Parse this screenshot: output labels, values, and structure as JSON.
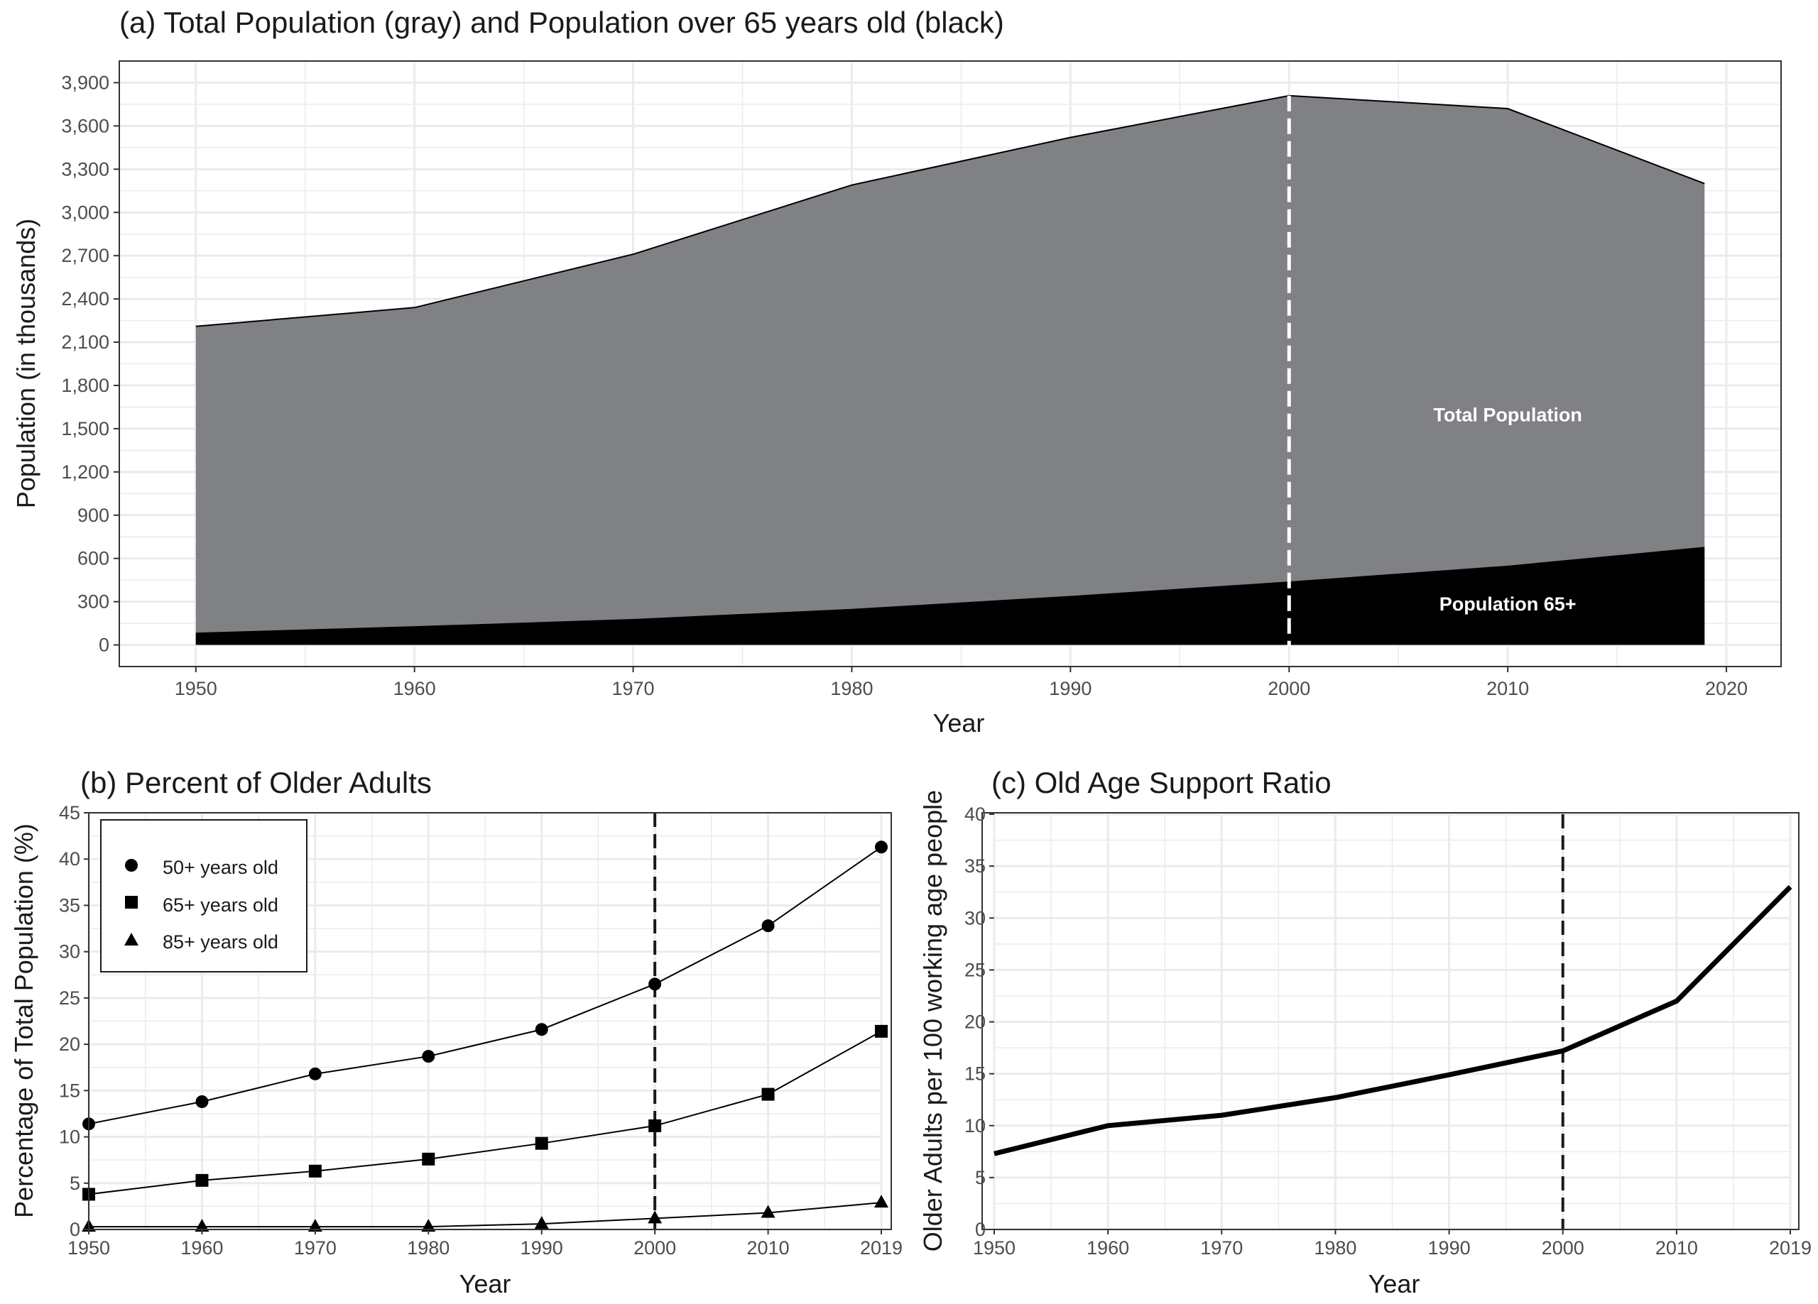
{
  "colors": {
    "total_area": "#808184",
    "older_area": "#000000",
    "grid": "#ebebeb",
    "panel_border": "#333333"
  },
  "chart_data": [
    {
      "id": "a",
      "type": "area",
      "title": "(a) Total Population (gray) and Population over 65 years old (black)",
      "xlabel": "Year",
      "ylabel": "Population (in thousands)",
      "xlim": [
        1946.5,
        2022.5
      ],
      "ylim": [
        -150,
        4050
      ],
      "xticks": [
        1950,
        1960,
        1970,
        1980,
        1990,
        2000,
        2010,
        2020
      ],
      "yticks": [
        0,
        300,
        600,
        900,
        1200,
        1500,
        1800,
        2100,
        2400,
        2700,
        3000,
        3300,
        3600,
        3900
      ],
      "ytick_labels": [
        "0",
        "300",
        "600",
        "900",
        "1,200",
        "1,500",
        "1,800",
        "2,100",
        "2,400",
        "2,700",
        "3,000",
        "3,300",
        "3,600",
        "3,900"
      ],
      "vline": 2000,
      "series": [
        {
          "name": "Total Population",
          "x": [
            1950,
            1960,
            1970,
            1980,
            1990,
            2000,
            2010,
            2019
          ],
          "values": [
            2210,
            2340,
            2710,
            3190,
            3520,
            3810,
            3720,
            3200
          ],
          "label_x": 2010,
          "label_y": 1550
        },
        {
          "name": "Population 65+",
          "x": [
            1950,
            1960,
            1970,
            1980,
            1990,
            2000,
            2010,
            2019
          ],
          "values": [
            85,
            130,
            180,
            250,
            340,
            440,
            550,
            680
          ],
          "label_x": 2010,
          "label_y": 240
        }
      ]
    },
    {
      "id": "b",
      "type": "line",
      "title": "(b) Percent of Older Adults",
      "xlabel": "Year",
      "ylabel": "Percentage of Total Population (%)",
      "categories": [
        "1950",
        "1960",
        "1970",
        "1980",
        "1990",
        "2000",
        "2010",
        "2019"
      ],
      "ylim": [
        0,
        45
      ],
      "yticks": [
        0,
        5,
        10,
        15,
        20,
        25,
        30,
        35,
        40,
        45
      ],
      "vline_index": 5,
      "series": [
        {
          "name": "50+ years old",
          "marker": "circle",
          "values": [
            11.4,
            13.8,
            16.8,
            18.7,
            21.6,
            26.5,
            32.8,
            41.3
          ]
        },
        {
          "name": "65+ years old",
          "marker": "square",
          "values": [
            3.8,
            5.3,
            6.3,
            7.6,
            9.3,
            11.2,
            14.6,
            21.4
          ]
        },
        {
          "name": "85+ years old",
          "marker": "triangle",
          "values": [
            0.3,
            0.3,
            0.3,
            0.3,
            0.6,
            1.2,
            1.8,
            2.9
          ]
        }
      ]
    },
    {
      "id": "c",
      "type": "line",
      "title": "(c) Old Age Support Ratio",
      "xlabel": "Year",
      "ylabel": "Older Adults per 100 working age people",
      "categories": [
        "1950",
        "1960",
        "1970",
        "1980",
        "1990",
        "2000",
        "2010",
        "2019"
      ],
      "ylim": [
        0,
        40
      ],
      "yticks": [
        0,
        5,
        10,
        15,
        20,
        25,
        30,
        35,
        40
      ],
      "vline_index": 5,
      "series": [
        {
          "name": "Old Age Support Ratio",
          "values": [
            7.3,
            10.0,
            11.0,
            12.7,
            14.9,
            17.2,
            22.0,
            33.0
          ]
        }
      ]
    }
  ]
}
